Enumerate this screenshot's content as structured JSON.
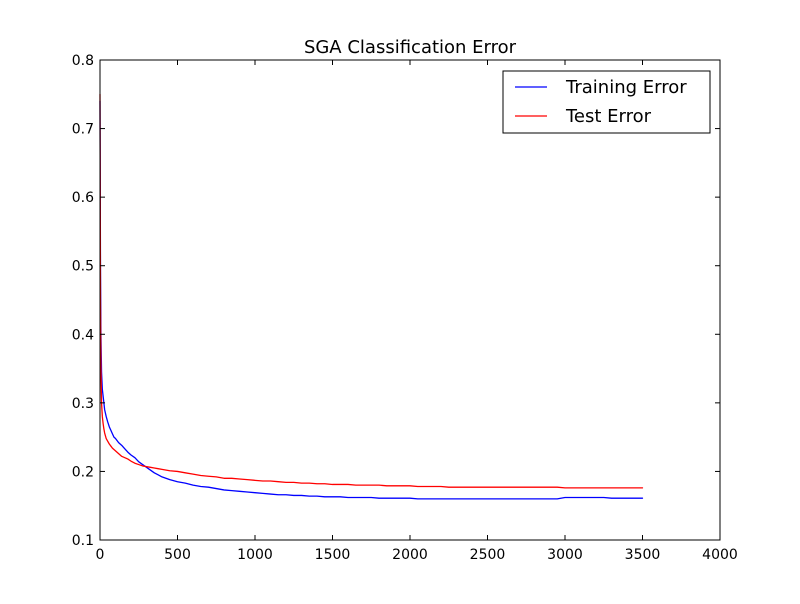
{
  "chart_data": {
    "type": "line",
    "title": "SGA Classification Error",
    "xlabel": "",
    "ylabel": "",
    "xlim": [
      0,
      4000
    ],
    "ylim": [
      0.1,
      0.8
    ],
    "xticks": [
      0,
      500,
      1000,
      1500,
      2000,
      2500,
      3000,
      3500,
      4000
    ],
    "yticks": [
      0.1,
      0.2,
      0.3,
      0.4,
      0.5,
      0.6,
      0.7,
      0.8
    ],
    "xtick_labels": [
      "0",
      "500",
      "1000",
      "1500",
      "2000",
      "2500",
      "3000",
      "3500",
      "4000"
    ],
    "ytick_labels": [
      "0.1",
      "0.2",
      "0.3",
      "0.4",
      "0.5",
      "0.6",
      "0.7",
      "0.8"
    ],
    "grid": false,
    "legend": {
      "location": "upper right"
    },
    "series": [
      {
        "name": "Training Error",
        "color": "#0000ff",
        "x": [
          0,
          3,
          6,
          10,
          15,
          20,
          25,
          30,
          35,
          40,
          50,
          60,
          70,
          80,
          90,
          100,
          120,
          140,
          160,
          180,
          200,
          225,
          250,
          275,
          300,
          325,
          350,
          375,
          400,
          450,
          500,
          550,
          600,
          650,
          700,
          750,
          800,
          850,
          900,
          950,
          1000,
          1050,
          1100,
          1150,
          1200,
          1250,
          1300,
          1350,
          1400,
          1450,
          1500,
          1550,
          1600,
          1650,
          1700,
          1750,
          1800,
          1850,
          1900,
          1950,
          2000,
          2050,
          2100,
          2150,
          2200,
          2250,
          2300,
          2350,
          2400,
          2450,
          2500,
          2550,
          2600,
          2650,
          2700,
          2750,
          2800,
          2850,
          2900,
          2950,
          3000,
          3050,
          3100,
          3150,
          3200,
          3250,
          3300,
          3350,
          3400,
          3450,
          3500
        ],
        "y": [
          0.74,
          0.5,
          0.4,
          0.345,
          0.32,
          0.31,
          0.3,
          0.29,
          0.285,
          0.28,
          0.272,
          0.265,
          0.26,
          0.255,
          0.25,
          0.248,
          0.242,
          0.238,
          0.233,
          0.228,
          0.224,
          0.22,
          0.214,
          0.21,
          0.206,
          0.202,
          0.198,
          0.195,
          0.192,
          0.188,
          0.185,
          0.183,
          0.18,
          0.178,
          0.177,
          0.175,
          0.173,
          0.172,
          0.171,
          0.17,
          0.169,
          0.168,
          0.167,
          0.166,
          0.166,
          0.165,
          0.165,
          0.164,
          0.164,
          0.163,
          0.163,
          0.163,
          0.162,
          0.162,
          0.162,
          0.162,
          0.161,
          0.161,
          0.161,
          0.161,
          0.161,
          0.16,
          0.16,
          0.16,
          0.16,
          0.16,
          0.16,
          0.16,
          0.16,
          0.16,
          0.16,
          0.16,
          0.16,
          0.16,
          0.16,
          0.16,
          0.16,
          0.16,
          0.16,
          0.16,
          0.162,
          0.162,
          0.162,
          0.162,
          0.162,
          0.162,
          0.161,
          0.161,
          0.161,
          0.161,
          0.161
        ]
      },
      {
        "name": "Test Error",
        "color": "#ff0000",
        "x": [
          0,
          3,
          6,
          10,
          15,
          20,
          25,
          30,
          35,
          40,
          50,
          60,
          70,
          80,
          90,
          100,
          120,
          140,
          160,
          180,
          200,
          225,
          250,
          275,
          300,
          325,
          350,
          375,
          400,
          450,
          500,
          550,
          600,
          650,
          700,
          750,
          800,
          850,
          900,
          950,
          1000,
          1050,
          1100,
          1150,
          1200,
          1250,
          1300,
          1350,
          1400,
          1450,
          1500,
          1550,
          1600,
          1650,
          1700,
          1750,
          1800,
          1850,
          1900,
          1950,
          2000,
          2050,
          2100,
          2150,
          2200,
          2250,
          2300,
          2350,
          2400,
          2450,
          2500,
          2550,
          2600,
          2650,
          2700,
          2750,
          2800,
          2850,
          2900,
          2950,
          3000,
          3050,
          3100,
          3150,
          3200,
          3250,
          3300,
          3350,
          3400,
          3450,
          3500
        ],
        "y": [
          0.75,
          0.45,
          0.35,
          0.3,
          0.28,
          0.27,
          0.262,
          0.256,
          0.252,
          0.248,
          0.244,
          0.24,
          0.237,
          0.234,
          0.232,
          0.23,
          0.226,
          0.222,
          0.22,
          0.218,
          0.215,
          0.212,
          0.21,
          0.208,
          0.207,
          0.206,
          0.205,
          0.204,
          0.203,
          0.201,
          0.2,
          0.198,
          0.196,
          0.194,
          0.193,
          0.192,
          0.19,
          0.19,
          0.189,
          0.188,
          0.187,
          0.186,
          0.186,
          0.185,
          0.184,
          0.184,
          0.183,
          0.183,
          0.182,
          0.182,
          0.181,
          0.181,
          0.181,
          0.18,
          0.18,
          0.18,
          0.18,
          0.179,
          0.179,
          0.179,
          0.179,
          0.178,
          0.178,
          0.178,
          0.178,
          0.177,
          0.177,
          0.177,
          0.177,
          0.177,
          0.177,
          0.177,
          0.177,
          0.177,
          0.177,
          0.177,
          0.177,
          0.177,
          0.177,
          0.177,
          0.176,
          0.176,
          0.176,
          0.176,
          0.176,
          0.176,
          0.176,
          0.176,
          0.176,
          0.176,
          0.176
        ]
      }
    ]
  }
}
